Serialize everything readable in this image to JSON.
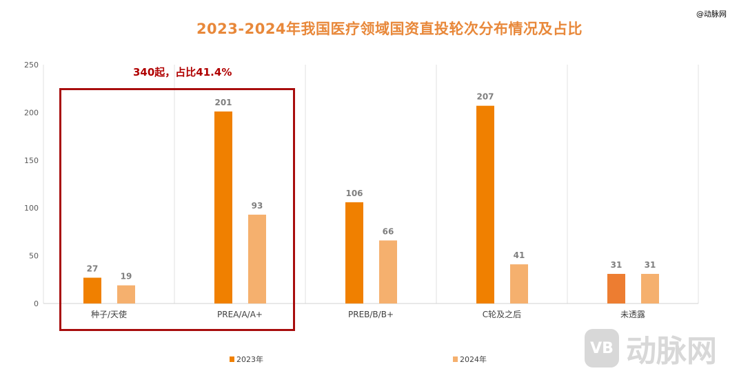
{
  "credit": "@动脉网",
  "watermark": {
    "logo": "VB",
    "text": "动脉网"
  },
  "annotation": "340起，占比41.4%",
  "chart_data": {
    "type": "bar",
    "title": "2023-2024年我国医疗领域国资直投轮次分布情况及占比",
    "categories": [
      "种子/天使",
      "PREA/A/A+",
      "PREB/B/B+",
      "C轮及之后",
      "未透露"
    ],
    "series": [
      {
        "name": "2023年",
        "color": "#f08000",
        "values": [
          27,
          201,
          106,
          207,
          31
        ]
      },
      {
        "name": "2024年",
        "color": "#f5b06e",
        "values": [
          19,
          93,
          66,
          41,
          31
        ]
      }
    ],
    "ylim": [
      0,
      250
    ],
    "yticks": [
      0,
      50,
      100,
      150,
      200,
      250
    ],
    "xlabel": "",
    "ylabel": "",
    "grid": "vertical category separators",
    "legend": "bottom"
  }
}
